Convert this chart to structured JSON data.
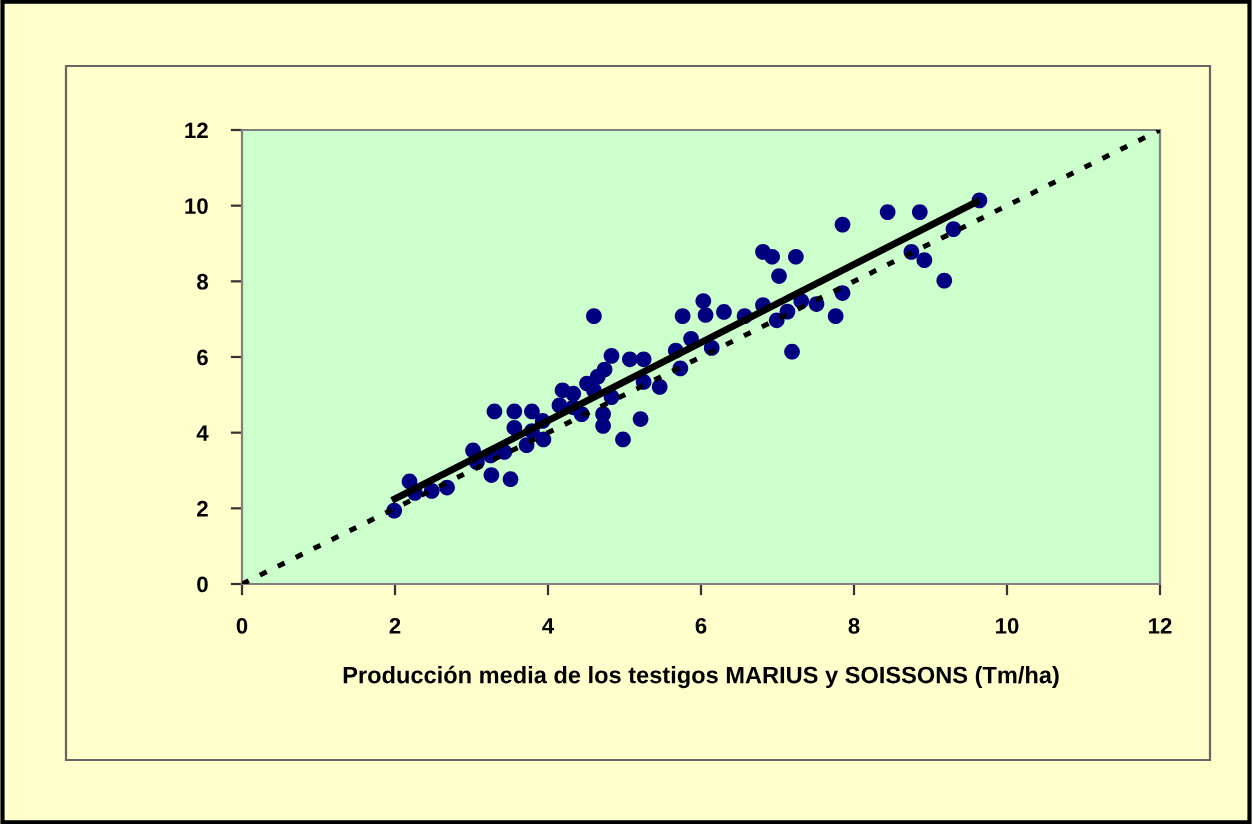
{
  "chart_data": {
    "type": "scatter",
    "xlabel": "Producción media de los testigos MARIUS y SOISSONS (Tm/ha)",
    "xlim": [
      0,
      12
    ],
    "ylim": [
      0,
      12
    ],
    "xticks": [
      0,
      2,
      4,
      6,
      8,
      10,
      12
    ],
    "yticks": [
      0,
      2,
      4,
      6,
      8,
      10,
      12
    ],
    "grid": false,
    "series": [
      {
        "marker": "circle",
        "color": "#000080",
        "x": [
          1.99,
          2.19,
          2.26,
          2.48,
          2.68,
          3.02,
          3.07,
          3.25,
          3.3,
          3.26,
          3.51,
          3.43,
          3.56,
          3.56,
          3.72,
          3.79,
          3.93,
          3.94,
          3.79,
          4.15,
          4.19,
          4.33,
          4.33,
          4.44,
          4.51,
          4.6,
          4.6,
          4.65,
          4.74,
          4.72,
          4.72,
          4.83,
          4.83,
          4.98,
          5.07,
          5.21,
          5.25,
          5.25,
          5.46,
          5.67,
          5.73,
          5.76,
          5.87,
          6.03,
          6.06,
          6.14,
          6.3,
          6.57,
          6.81,
          6.81,
          6.93,
          6.99,
          7.02,
          7.13,
          7.19,
          7.24,
          7.31,
          7.51,
          7.76,
          7.85,
          7.85,
          8.44,
          8.75,
          8.86,
          8.92,
          9.18,
          9.3,
          9.64
        ],
        "values": [
          1.94,
          2.71,
          2.41,
          2.46,
          2.55,
          3.53,
          3.22,
          3.4,
          4.56,
          2.88,
          2.77,
          3.49,
          4.56,
          4.13,
          3.67,
          4.56,
          4.31,
          3.82,
          4.04,
          4.72,
          5.12,
          5.03,
          4.67,
          4.49,
          5.3,
          7.08,
          5.12,
          5.48,
          5.67,
          4.49,
          4.18,
          6.03,
          4.94,
          3.82,
          5.94,
          4.36,
          5.94,
          5.34,
          5.21,
          6.17,
          5.7,
          7.08,
          6.48,
          7.48,
          7.11,
          6.24,
          7.19,
          7.08,
          7.37,
          8.78,
          8.65,
          6.97,
          8.14,
          7.2,
          6.14,
          8.65,
          7.48,
          7.4,
          7.08,
          7.69,
          9.5,
          9.83,
          8.78,
          9.83,
          8.56,
          8.02,
          9.38,
          10.14
        ]
      },
      {
        "type": "line",
        "color": "#000000",
        "line_style": "solid",
        "x": [
          2.0,
          9.6
        ],
        "values": [
          2.25,
          10.1
        ]
      },
      {
        "type": "line",
        "color": "#000000",
        "line_style": "dotted",
        "x": [
          0,
          12
        ],
        "values": [
          0,
          12
        ]
      }
    ]
  }
}
